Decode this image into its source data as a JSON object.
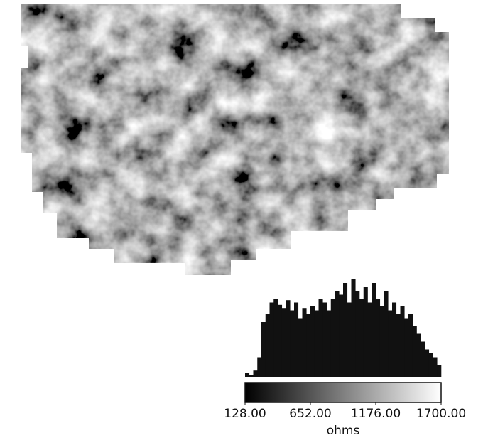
{
  "chart_data": {
    "type": "histogram",
    "bins": [
      128,
      160.75,
      193.5,
      226.25,
      259,
      291.75,
      324.5,
      357.25,
      390,
      422.75,
      455.5,
      488.25,
      521,
      553.75,
      586.5,
      619.25,
      652,
      684.75,
      717.5,
      750.25,
      783,
      815.75,
      848.5,
      881.25,
      914,
      946.75,
      979.5,
      1012.25,
      1045,
      1077.75,
      1110.5,
      1143.25,
      1176,
      1208.75,
      1241.5,
      1274.25,
      1307,
      1339.75,
      1372.5,
      1405.25,
      1438,
      1470.75,
      1503.5,
      1536.25,
      1569,
      1601.75,
      1634.5,
      1667.25,
      1700
    ],
    "counts": [
      5,
      2,
      8,
      25,
      70,
      80,
      95,
      100,
      92,
      88,
      98,
      85,
      95,
      75,
      88,
      80,
      90,
      85,
      100,
      95,
      85,
      100,
      110,
      105,
      120,
      95,
      125,
      110,
      100,
      115,
      95,
      120,
      100,
      90,
      110,
      85,
      95,
      80,
      90,
      75,
      80,
      65,
      55,
      45,
      35,
      30,
      25,
      15
    ],
    "color": "#111111",
    "xlim": [
      128,
      1700
    ],
    "xticks": [
      {
        "value": 128,
        "label": "128.00"
      },
      {
        "value": 652,
        "label": "652.00"
      },
      {
        "value": 1176,
        "label": "1176.00"
      },
      {
        "value": 1700,
        "label": "1700.00"
      }
    ],
    "xlabel": "ohms"
  }
}
